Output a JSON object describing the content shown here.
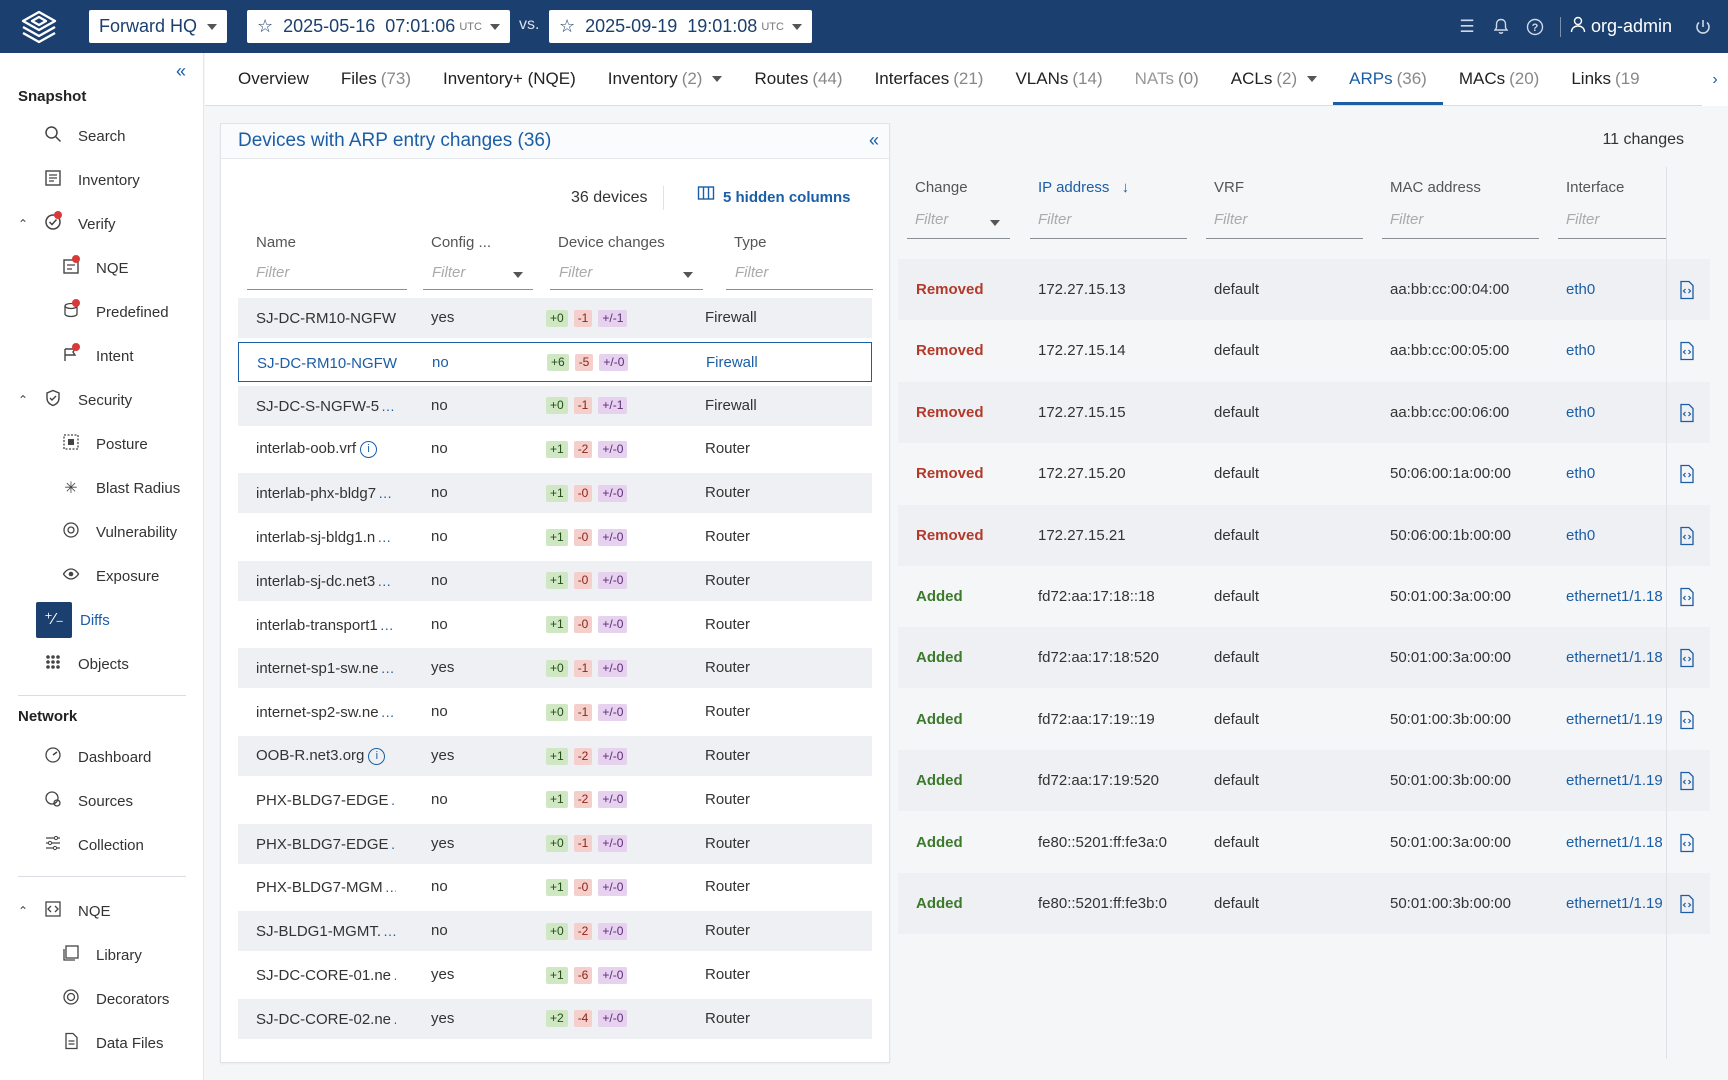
{
  "header": {
    "org": "Forward HQ",
    "snapshot_a": {
      "date": "2025-05-16",
      "time": "07:01:06",
      "tz": "UTC"
    },
    "vs_label": "vs.",
    "snapshot_b": {
      "date": "2025-09-19",
      "time": "19:01:08",
      "tz": "UTC"
    },
    "user": "org-admin",
    "icons": [
      "list-icon",
      "bell-icon",
      "help-icon",
      "user-icon",
      "power-icon"
    ]
  },
  "sidebar": {
    "snapshot_section": "Snapshot",
    "snapshot_items": [
      {
        "label": "Search",
        "icon": "search-icon"
      },
      {
        "label": "Inventory",
        "icon": "inventory-icon"
      },
      {
        "label": "Verify",
        "icon": "verify-icon"
      },
      {
        "label": "NQE",
        "icon": "nqe-icon"
      },
      {
        "label": "Predefined",
        "icon": "predefined-icon"
      },
      {
        "label": "Intent",
        "icon": "intent-icon"
      },
      {
        "label": "Security",
        "icon": "shield-icon"
      },
      {
        "label": "Posture",
        "icon": "posture-icon"
      },
      {
        "label": "Blast Radius",
        "icon": "blast-radius-icon"
      },
      {
        "label": "Vulnerability",
        "icon": "vulnerability-icon"
      },
      {
        "label": "Exposure",
        "icon": "exposure-icon"
      },
      {
        "label": "Diffs",
        "icon": "diffs-icon"
      },
      {
        "label": "Objects",
        "icon": "objects-icon"
      }
    ],
    "network_section": "Network",
    "network_items": [
      {
        "label": "Dashboard",
        "icon": "dashboard-icon"
      },
      {
        "label": "Sources",
        "icon": "sources-icon"
      },
      {
        "label": "Collection",
        "icon": "collection-icon"
      }
    ],
    "nqe_items": [
      {
        "label": "NQE",
        "icon": "code-icon"
      },
      {
        "label": "Library",
        "icon": "library-icon"
      },
      {
        "label": "Decorators",
        "icon": "decorators-icon"
      },
      {
        "label": "Data Files",
        "icon": "data-files-icon"
      }
    ]
  },
  "tabs": [
    {
      "label": "Overview",
      "count": ""
    },
    {
      "label": "Files",
      "count": "(73)"
    },
    {
      "label": "Inventory+ (NQE)",
      "count": ""
    },
    {
      "label": "Inventory",
      "count": "(2)"
    },
    {
      "label": "Routes",
      "count": "(44)"
    },
    {
      "label": "Interfaces",
      "count": "(21)"
    },
    {
      "label": "VLANs",
      "count": "(14)"
    },
    {
      "label": "NATs",
      "count": "(0)"
    },
    {
      "label": "ACLs",
      "count": "(2)"
    },
    {
      "label": "ARPs",
      "count": "(36)"
    },
    {
      "label": "MACs",
      "count": "(20)"
    },
    {
      "label": "Links",
      "count": "(19"
    }
  ],
  "left_panel": {
    "title": "Devices with ARP entry changes (36)",
    "device_count": "36 devices",
    "hidden_columns": "5 hidden columns",
    "columns": {
      "name": "Name",
      "config": "Config ...",
      "device_changes": "Device changes",
      "type": "Type"
    },
    "filter_placeholder": "Filter",
    "rows": [
      {
        "name": "SJ-DC-RM10-NGFW",
        "config": "yes",
        "add": "+0",
        "rem": "-1",
        "mod": "+/-1",
        "type": "Firewall"
      },
      {
        "name": "SJ-DC-RM10-NGFW",
        "config": "no",
        "add": "+6",
        "rem": "-5",
        "mod": "+/-0",
        "type": "Firewall"
      },
      {
        "name": "SJ-DC-S-NGFW-5",
        "config": "no",
        "add": "+0",
        "rem": "-1",
        "mod": "+/-1",
        "type": "Firewall"
      },
      {
        "name": "interlab-oob.vrf",
        "config": "no",
        "add": "+1",
        "rem": "-2",
        "mod": "+/-0",
        "type": "Router"
      },
      {
        "name": "interlab-phx-bldg7",
        "config": "no",
        "add": "+1",
        "rem": "-0",
        "mod": "+/-0",
        "type": "Router"
      },
      {
        "name": "interlab-sj-bldg1.n",
        "config": "no",
        "add": "+1",
        "rem": "-0",
        "mod": "+/-0",
        "type": "Router"
      },
      {
        "name": "interlab-sj-dc.net3",
        "config": "no",
        "add": "+1",
        "rem": "-0",
        "mod": "+/-0",
        "type": "Router"
      },
      {
        "name": "interlab-transport1",
        "config": "no",
        "add": "+1",
        "rem": "-0",
        "mod": "+/-0",
        "type": "Router"
      },
      {
        "name": "internet-sp1-sw.ne",
        "config": "yes",
        "add": "+0",
        "rem": "-1",
        "mod": "+/-0",
        "type": "Router"
      },
      {
        "name": "internet-sp2-sw.ne",
        "config": "no",
        "add": "+0",
        "rem": "-1",
        "mod": "+/-0",
        "type": "Router"
      },
      {
        "name": "OOB-R.net3.org",
        "config": "yes",
        "add": "+1",
        "rem": "-2",
        "mod": "+/-0",
        "type": "Router"
      },
      {
        "name": "PHX-BLDG7-EDGE",
        "config": "no",
        "add": "+1",
        "rem": "-2",
        "mod": "+/-0",
        "type": "Router"
      },
      {
        "name": "PHX-BLDG7-EDGE",
        "config": "yes",
        "add": "+0",
        "rem": "-1",
        "mod": "+/-0",
        "type": "Router"
      },
      {
        "name": "PHX-BLDG7-MGM",
        "config": "no",
        "add": "+1",
        "rem": "-0",
        "mod": "+/-0",
        "type": "Router"
      },
      {
        "name": "SJ-BLDG1-MGMT.",
        "config": "no",
        "add": "+0",
        "rem": "-2",
        "mod": "+/-0",
        "type": "Router"
      },
      {
        "name": "SJ-DC-CORE-01.ne",
        "config": "yes",
        "add": "+1",
        "rem": "-6",
        "mod": "+/-0",
        "type": "Router"
      },
      {
        "name": "SJ-DC-CORE-02.ne",
        "config": "yes",
        "add": "+2",
        "rem": "-4",
        "mod": "+/-0",
        "type": "Router"
      }
    ]
  },
  "right_panel": {
    "changes_count": "11 changes",
    "columns": {
      "change": "Change",
      "ip": "IP address",
      "vrf": "VRF",
      "mac": "MAC address",
      "interface": "Interface"
    },
    "filter_placeholder": "Filter",
    "rows": [
      {
        "change": "Removed",
        "ip": "172.27.15.13",
        "vrf": "default",
        "mac": "aa:bb:cc:00:04:00",
        "iface": "eth0"
      },
      {
        "change": "Removed",
        "ip": "172.27.15.14",
        "vrf": "default",
        "mac": "aa:bb:cc:00:05:00",
        "iface": "eth0"
      },
      {
        "change": "Removed",
        "ip": "172.27.15.15",
        "vrf": "default",
        "mac": "aa:bb:cc:00:06:00",
        "iface": "eth0"
      },
      {
        "change": "Removed",
        "ip": "172.27.15.20",
        "vrf": "default",
        "mac": "50:06:00:1a:00:00",
        "iface": "eth0"
      },
      {
        "change": "Removed",
        "ip": "172.27.15.21",
        "vrf": "default",
        "mac": "50:06:00:1b:00:00",
        "iface": "eth0"
      },
      {
        "change": "Added",
        "ip": "fd72:aa:17:18::18",
        "vrf": "default",
        "mac": "50:01:00:3a:00:00",
        "iface": "ethernet1/1.18"
      },
      {
        "change": "Added",
        "ip": "fd72:aa:17:18:520",
        "vrf": "default",
        "mac": "50:01:00:3a:00:00",
        "iface": "ethernet1/1.18"
      },
      {
        "change": "Added",
        "ip": "fd72:aa:17:19::19",
        "vrf": "default",
        "mac": "50:01:00:3b:00:00",
        "iface": "ethernet1/1.19"
      },
      {
        "change": "Added",
        "ip": "fd72:aa:17:19:520",
        "vrf": "default",
        "mac": "50:01:00:3b:00:00",
        "iface": "ethernet1/1.19"
      },
      {
        "change": "Added",
        "ip": "fe80::5201:ff:fe3a:0",
        "vrf": "default",
        "mac": "50:01:00:3a:00:00",
        "iface": "ethernet1/1.18"
      },
      {
        "change": "Added",
        "ip": "fe80::5201:ff:fe3b:0",
        "vrf": "default",
        "mac": "50:01:00:3b:00:00",
        "iface": "ethernet1/1.19"
      }
    ]
  }
}
